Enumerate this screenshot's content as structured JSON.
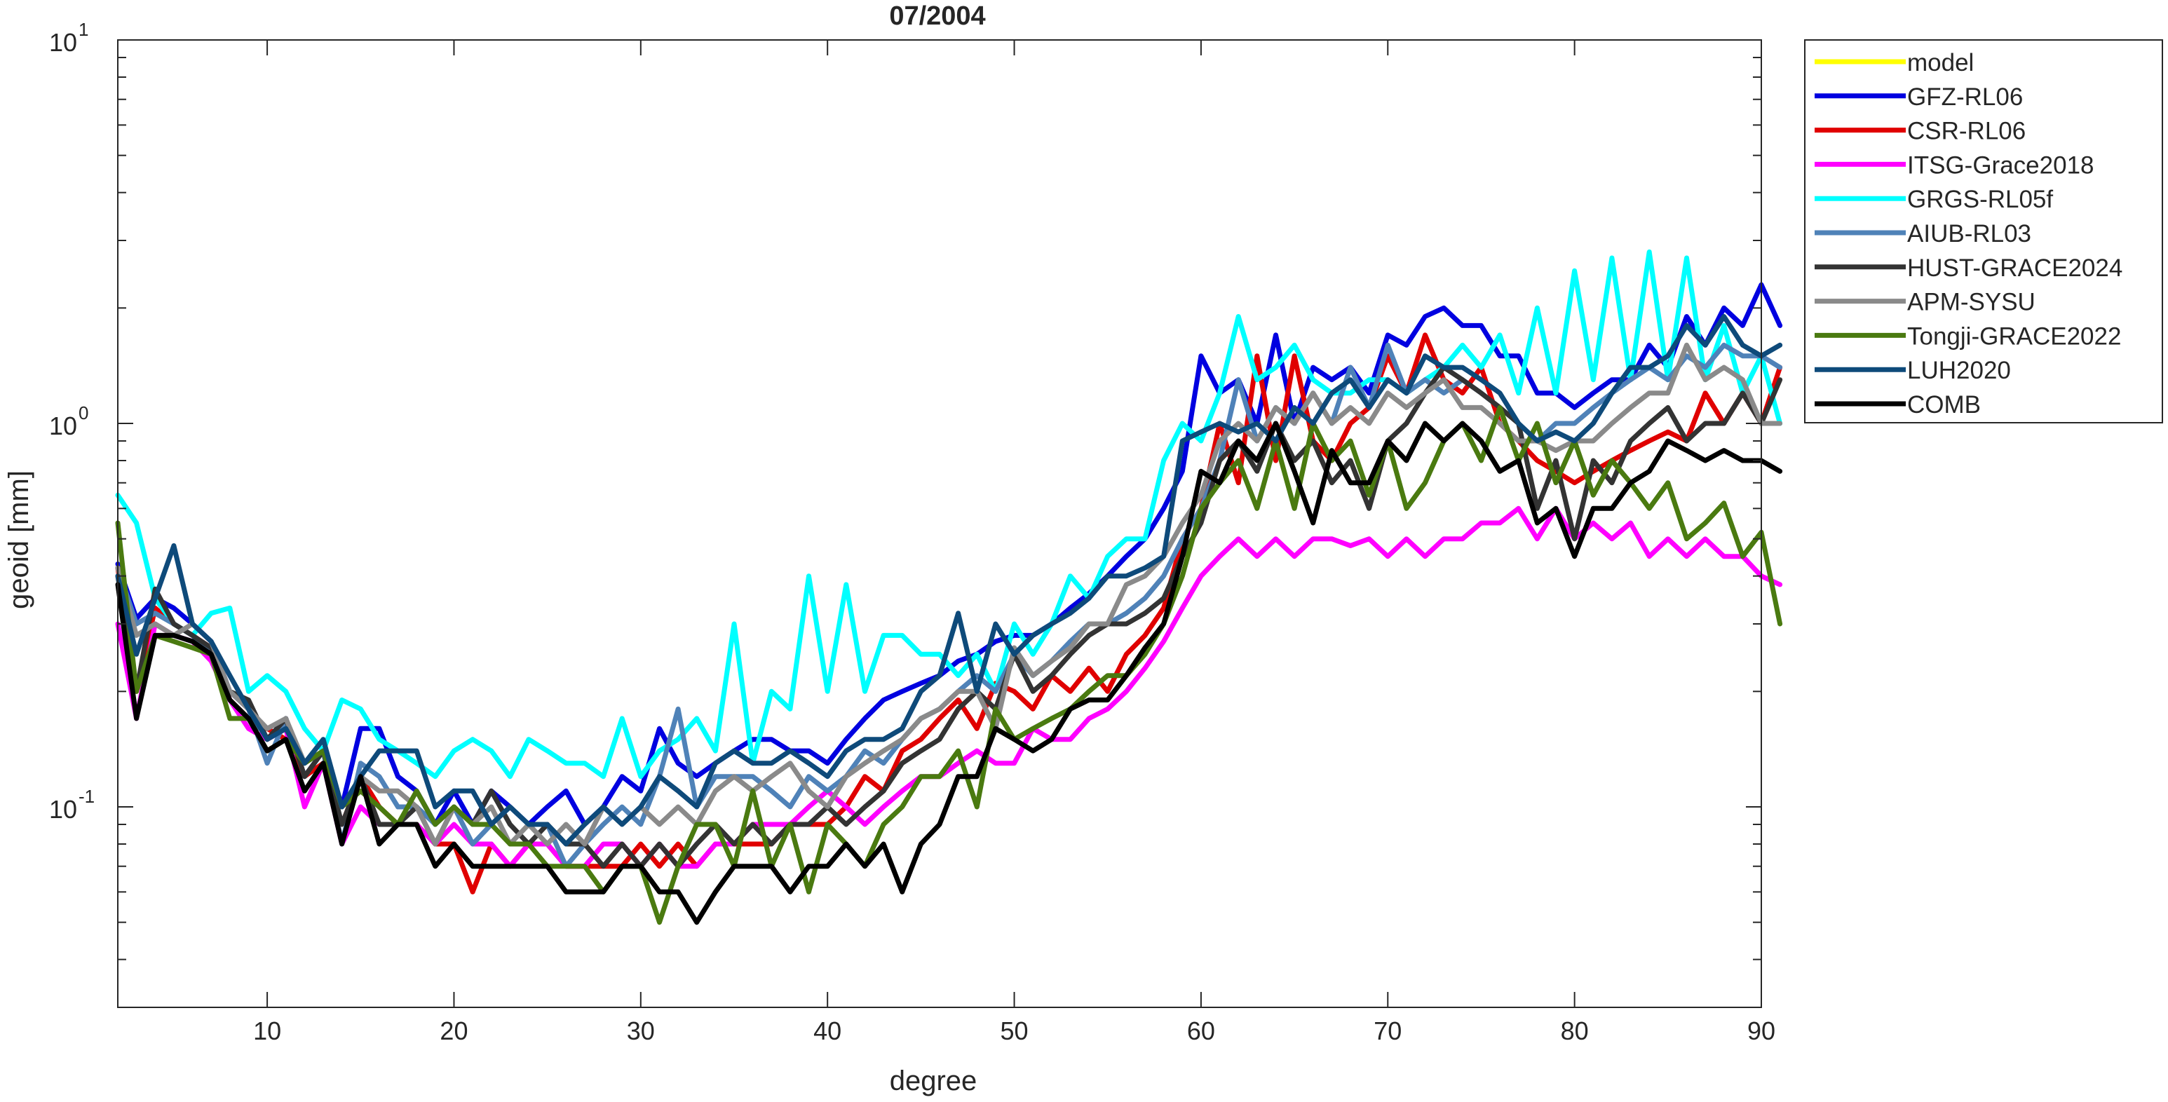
{
  "chart_data": {
    "type": "line",
    "title": "07/2004",
    "xlabel": "degree",
    "ylabel": "geoid [mm]",
    "xlim": [
      2,
      90
    ],
    "ylim": [
      0.03,
      10
    ],
    "yscale": "log",
    "xticks": [
      10,
      20,
      30,
      40,
      50,
      60,
      70,
      80,
      90
    ],
    "yticks": [
      {
        "value": 0.1,
        "base": "10",
        "exp": "-1"
      },
      {
        "value": 1,
        "base": "10",
        "exp": "0"
      },
      {
        "value": 10,
        "base": "10",
        "exp": "1"
      }
    ],
    "grid": false,
    "legend": "outside-top-right",
    "x_start": 2,
    "x_step": 1,
    "series": [
      {
        "name": "model",
        "color": "#FFFF00",
        "values": []
      },
      {
        "name": "GFZ-RL06",
        "color": "#0000E0",
        "values": [
          0.43,
          0.31,
          0.35,
          0.33,
          0.3,
          0.27,
          0.2,
          0.18,
          0.15,
          0.17,
          0.12,
          0.14,
          0.1,
          0.16,
          0.16,
          0.12,
          0.11,
          0.09,
          0.11,
          0.09,
          0.11,
          0.1,
          0.09,
          0.1,
          0.11,
          0.09,
          0.1,
          0.12,
          0.11,
          0.16,
          0.13,
          0.12,
          0.13,
          0.14,
          0.15,
          0.15,
          0.14,
          0.14,
          0.13,
          0.15,
          0.17,
          0.19,
          0.2,
          0.21,
          0.22,
          0.24,
          0.25,
          0.27,
          0.28,
          0.28,
          0.3,
          0.33,
          0.36,
          0.4,
          0.45,
          0.5,
          0.6,
          0.75,
          1.5,
          1.2,
          1.3,
          1.0,
          1.7,
          1.0,
          1.4,
          1.3,
          1.4,
          1.2,
          1.7,
          1.6,
          1.9,
          2.0,
          1.8,
          1.8,
          1.5,
          1.5,
          1.2,
          1.2,
          1.1,
          1.2,
          1.3,
          1.3,
          1.6,
          1.4,
          1.9,
          1.6,
          2.0,
          1.8,
          2.3,
          1.8
        ]
      },
      {
        "name": "CSR-RL06",
        "color": "#E00000",
        "values": [
          0.42,
          0.2,
          0.33,
          0.3,
          0.28,
          0.26,
          0.19,
          0.17,
          0.16,
          0.15,
          0.12,
          0.13,
          0.09,
          0.12,
          0.1,
          0.09,
          0.09,
          0.08,
          0.08,
          0.06,
          0.08,
          0.07,
          0.08,
          0.08,
          0.07,
          0.07,
          0.07,
          0.07,
          0.08,
          0.07,
          0.08,
          0.07,
          0.08,
          0.08,
          0.08,
          0.08,
          0.09,
          0.09,
          0.09,
          0.1,
          0.12,
          0.11,
          0.14,
          0.15,
          0.17,
          0.19,
          0.16,
          0.21,
          0.2,
          0.18,
          0.22,
          0.2,
          0.23,
          0.2,
          0.25,
          0.28,
          0.33,
          0.5,
          0.6,
          1.0,
          0.7,
          1.5,
          0.8,
          1.5,
          0.9,
          0.8,
          1.0,
          1.1,
          1.5,
          1.2,
          1.7,
          1.3,
          1.2,
          1.4,
          1.0,
          0.9,
          0.8,
          0.75,
          0.7,
          0.75,
          0.8,
          0.85,
          0.9,
          0.95,
          0.9,
          1.2,
          1.0,
          1.2,
          1.0,
          1.4
        ]
      },
      {
        "name": "ITSG-Grace2018",
        "color": "#FF00FF",
        "values": [
          0.3,
          0.17,
          0.3,
          0.28,
          0.27,
          0.24,
          0.19,
          0.16,
          0.15,
          0.16,
          0.1,
          0.13,
          0.08,
          0.1,
          0.09,
          0.09,
          0.09,
          0.08,
          0.09,
          0.08,
          0.08,
          0.07,
          0.08,
          0.08,
          0.07,
          0.07,
          0.08,
          0.08,
          0.07,
          0.08,
          0.07,
          0.07,
          0.08,
          0.08,
          0.09,
          0.09,
          0.09,
          0.1,
          0.11,
          0.1,
          0.09,
          0.1,
          0.11,
          0.12,
          0.12,
          0.13,
          0.14,
          0.13,
          0.13,
          0.16,
          0.15,
          0.15,
          0.17,
          0.18,
          0.2,
          0.23,
          0.27,
          0.33,
          0.4,
          0.45,
          0.5,
          0.45,
          0.5,
          0.45,
          0.5,
          0.5,
          0.48,
          0.5,
          0.45,
          0.5,
          0.45,
          0.5,
          0.5,
          0.55,
          0.55,
          0.6,
          0.5,
          0.6,
          0.5,
          0.55,
          0.5,
          0.55,
          0.45,
          0.5,
          0.45,
          0.5,
          0.45,
          0.45,
          0.4,
          0.38
        ]
      },
      {
        "name": "GRGS-RL05f",
        "color": "#00FFFF",
        "values": [
          0.65,
          0.55,
          0.35,
          0.3,
          0.28,
          0.32,
          0.33,
          0.2,
          0.22,
          0.2,
          0.16,
          0.14,
          0.19,
          0.18,
          0.15,
          0.14,
          0.13,
          0.12,
          0.14,
          0.15,
          0.14,
          0.12,
          0.15,
          0.14,
          0.13,
          0.13,
          0.12,
          0.17,
          0.12,
          0.14,
          0.15,
          0.17,
          0.14,
          0.3,
          0.13,
          0.2,
          0.18,
          0.4,
          0.2,
          0.38,
          0.2,
          0.28,
          0.28,
          0.25,
          0.25,
          0.22,
          0.25,
          0.2,
          0.3,
          0.25,
          0.3,
          0.4,
          0.35,
          0.45,
          0.5,
          0.5,
          0.8,
          1.0,
          0.9,
          1.2,
          1.9,
          1.3,
          1.4,
          1.6,
          1.3,
          1.2,
          1.2,
          1.3,
          1.3,
          1.2,
          1.3,
          1.4,
          1.6,
          1.4,
          1.7,
          1.2,
          2.0,
          1.2,
          2.5,
          1.3,
          2.7,
          1.3,
          2.8,
          1.3,
          2.7,
          1.3,
          1.8,
          1.2,
          1.5,
          1.0
        ]
      },
      {
        "name": "AIUB-RL03",
        "color": "#4F82B8",
        "values": [
          0.42,
          0.3,
          0.32,
          0.3,
          0.28,
          0.25,
          0.2,
          0.18,
          0.13,
          0.17,
          0.12,
          0.14,
          0.08,
          0.13,
          0.12,
          0.1,
          0.1,
          0.09,
          0.1,
          0.08,
          0.09,
          0.1,
          0.09,
          0.09,
          0.07,
          0.08,
          0.09,
          0.1,
          0.09,
          0.12,
          0.18,
          0.1,
          0.12,
          0.12,
          0.12,
          0.11,
          0.1,
          0.12,
          0.11,
          0.12,
          0.14,
          0.13,
          0.15,
          0.17,
          0.18,
          0.2,
          0.22,
          0.2,
          0.25,
          0.22,
          0.24,
          0.27,
          0.3,
          0.3,
          0.32,
          0.35,
          0.4,
          0.5,
          0.6,
          0.8,
          1.3,
          0.9,
          1.1,
          1.0,
          1.2,
          1.0,
          1.4,
          1.1,
          1.6,
          1.2,
          1.3,
          1.2,
          1.3,
          1.2,
          1.1,
          1.0,
          0.9,
          1.0,
          1.0,
          1.1,
          1.2,
          1.3,
          1.4,
          1.3,
          1.5,
          1.4,
          1.6,
          1.5,
          1.5,
          1.4
        ]
      },
      {
        "name": "HUST-GRACE2024",
        "color": "#333333",
        "values": [
          0.4,
          0.2,
          0.37,
          0.3,
          0.28,
          0.26,
          0.2,
          0.19,
          0.15,
          0.17,
          0.12,
          0.14,
          0.09,
          0.12,
          0.09,
          0.09,
          0.1,
          0.08,
          0.1,
          0.09,
          0.11,
          0.09,
          0.08,
          0.09,
          0.08,
          0.08,
          0.07,
          0.08,
          0.07,
          0.08,
          0.07,
          0.08,
          0.09,
          0.08,
          0.09,
          0.08,
          0.09,
          0.09,
          0.1,
          0.09,
          0.1,
          0.11,
          0.13,
          0.14,
          0.15,
          0.18,
          0.2,
          0.18,
          0.25,
          0.2,
          0.22,
          0.25,
          0.28,
          0.3,
          0.3,
          0.32,
          0.35,
          0.45,
          0.55,
          0.8,
          0.9,
          0.75,
          1.0,
          0.8,
          0.9,
          0.7,
          0.8,
          0.6,
          0.9,
          1.0,
          1.2,
          1.4,
          1.3,
          1.2,
          1.1,
          1.0,
          0.6,
          0.8,
          0.5,
          0.8,
          0.7,
          0.9,
          1.0,
          1.1,
          0.9,
          1.0,
          1.0,
          1.2,
          1.0,
          1.3
        ]
      },
      {
        "name": "APM-SYSU",
        "color": "#8A8A8A",
        "values": [
          0.42,
          0.28,
          0.3,
          0.28,
          0.3,
          0.27,
          0.2,
          0.18,
          0.16,
          0.17,
          0.13,
          0.14,
          0.1,
          0.12,
          0.11,
          0.11,
          0.1,
          0.08,
          0.1,
          0.09,
          0.1,
          0.08,
          0.09,
          0.08,
          0.09,
          0.08,
          0.1,
          0.09,
          0.1,
          0.09,
          0.1,
          0.09,
          0.11,
          0.12,
          0.11,
          0.12,
          0.13,
          0.11,
          0.1,
          0.12,
          0.13,
          0.14,
          0.15,
          0.17,
          0.18,
          0.2,
          0.2,
          0.16,
          0.26,
          0.22,
          0.24,
          0.26,
          0.3,
          0.3,
          0.38,
          0.4,
          0.45,
          0.55,
          0.65,
          0.9,
          1.0,
          0.9,
          1.1,
          1.0,
          1.2,
          1.0,
          1.1,
          1.0,
          1.2,
          1.1,
          1.2,
          1.3,
          1.1,
          1.1,
          1.0,
          0.9,
          0.9,
          0.85,
          0.9,
          0.9,
          1.0,
          1.1,
          1.2,
          1.2,
          1.6,
          1.3,
          1.4,
          1.3,
          1.0,
          1.0
        ]
      },
      {
        "name": "Tongji-GRACE2022",
        "color": "#4A7A10",
        "values": [
          0.55,
          0.2,
          0.28,
          0.27,
          0.26,
          0.25,
          0.17,
          0.17,
          0.14,
          0.15,
          0.13,
          0.14,
          0.1,
          0.11,
          0.1,
          0.09,
          0.11,
          0.09,
          0.1,
          0.09,
          0.09,
          0.08,
          0.08,
          0.07,
          0.07,
          0.07,
          0.06,
          0.07,
          0.07,
          0.05,
          0.07,
          0.09,
          0.09,
          0.07,
          0.11,
          0.07,
          0.09,
          0.06,
          0.09,
          0.08,
          0.07,
          0.09,
          0.1,
          0.12,
          0.12,
          0.14,
          0.1,
          0.18,
          0.15,
          0.16,
          0.17,
          0.18,
          0.2,
          0.22,
          0.22,
          0.25,
          0.3,
          0.4,
          0.6,
          0.7,
          0.8,
          0.6,
          0.9,
          0.6,
          1.0,
          0.8,
          0.9,
          0.65,
          0.9,
          0.6,
          0.7,
          0.9,
          1.0,
          0.8,
          1.1,
          0.8,
          1.0,
          0.7,
          0.9,
          0.65,
          0.8,
          0.7,
          0.6,
          0.7,
          0.5,
          0.55,
          0.62,
          0.45,
          0.52,
          0.3
        ]
      },
      {
        "name": "LUH2020",
        "color": "#0E4A7A",
        "values": [
          0.4,
          0.25,
          0.35,
          0.48,
          0.3,
          0.27,
          0.22,
          0.18,
          0.15,
          0.16,
          0.13,
          0.15,
          0.1,
          0.12,
          0.14,
          0.14,
          0.14,
          0.1,
          0.11,
          0.11,
          0.09,
          0.1,
          0.09,
          0.09,
          0.08,
          0.09,
          0.1,
          0.09,
          0.1,
          0.12,
          0.11,
          0.1,
          0.13,
          0.14,
          0.13,
          0.13,
          0.14,
          0.13,
          0.12,
          0.14,
          0.15,
          0.15,
          0.16,
          0.2,
          0.22,
          0.32,
          0.2,
          0.3,
          0.25,
          0.28,
          0.3,
          0.32,
          0.35,
          0.4,
          0.4,
          0.42,
          0.45,
          0.9,
          0.95,
          1.0,
          0.95,
          1.0,
          0.9,
          1.1,
          1.0,
          1.2,
          1.3,
          1.1,
          1.3,
          1.2,
          1.5,
          1.4,
          1.4,
          1.3,
          1.2,
          1.0,
          0.9,
          0.95,
          0.9,
          1.0,
          1.2,
          1.4,
          1.4,
          1.5,
          1.8,
          1.6,
          1.9,
          1.6,
          1.5,
          1.6
        ]
      },
      {
        "name": "COMB",
        "color": "#000000",
        "values": [
          0.38,
          0.17,
          0.28,
          0.28,
          0.27,
          0.25,
          0.19,
          0.17,
          0.14,
          0.15,
          0.11,
          0.13,
          0.08,
          0.12,
          0.08,
          0.09,
          0.09,
          0.07,
          0.08,
          0.07,
          0.07,
          0.07,
          0.07,
          0.07,
          0.06,
          0.06,
          0.06,
          0.07,
          0.07,
          0.06,
          0.06,
          0.05,
          0.06,
          0.07,
          0.07,
          0.07,
          0.06,
          0.07,
          0.07,
          0.08,
          0.07,
          0.08,
          0.06,
          0.08,
          0.09,
          0.12,
          0.12,
          0.16,
          0.15,
          0.14,
          0.15,
          0.18,
          0.19,
          0.19,
          0.22,
          0.26,
          0.3,
          0.45,
          0.75,
          0.7,
          0.9,
          0.8,
          1.0,
          0.75,
          0.55,
          0.85,
          0.7,
          0.7,
          0.9,
          0.8,
          1.0,
          0.9,
          1.0,
          0.9,
          0.75,
          0.8,
          0.55,
          0.6,
          0.45,
          0.6,
          0.6,
          0.7,
          0.75,
          0.9,
          0.85,
          0.8,
          0.85,
          0.8,
          0.8,
          0.75
        ]
      }
    ]
  }
}
